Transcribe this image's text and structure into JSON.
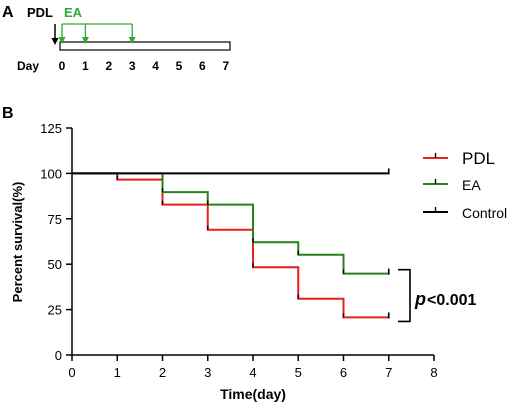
{
  "panel_a": {
    "letter": "A",
    "pdl_label": "PDL",
    "ea_label": "EA",
    "day_label": "Day",
    "days": [
      "0",
      "1",
      "2",
      "3",
      "4",
      "5",
      "6",
      "7"
    ],
    "pdl_day": 0,
    "ea_days": [
      0,
      1,
      3
    ],
    "colors": {
      "pdl": "#000000",
      "ea": "#2eaa3a"
    }
  },
  "panel_b": {
    "letter": "B",
    "p_value_italic": "p",
    "p_value_rest": "<0.001"
  },
  "chart_data": {
    "type": "line",
    "step": true,
    "ylabel": "Percent survival(%)",
    "xlabel": "Time(day)",
    "xlim": [
      0,
      8
    ],
    "ylim": [
      0,
      125
    ],
    "xticks": [
      "0",
      "1",
      "2",
      "3",
      "4",
      "5",
      "6",
      "7",
      "8"
    ],
    "yticks": [
      "0",
      "25",
      "50",
      "75",
      "100",
      "125"
    ],
    "grid": false,
    "legend_position": "top-right",
    "series": [
      {
        "name": "PDL",
        "color": "#e8201c",
        "points": [
          [
            0,
            100
          ],
          [
            1,
            96.6
          ],
          [
            2,
            82.8
          ],
          [
            3,
            69
          ],
          [
            4,
            48.3
          ],
          [
            5,
            31
          ],
          [
            6,
            20.7
          ],
          [
            7,
            20.7
          ]
        ],
        "censor": [
          [
            7,
            20.7
          ]
        ]
      },
      {
        "name": "EA",
        "color": "#2a7f1f",
        "points": [
          [
            0,
            100
          ],
          [
            2,
            89.7
          ],
          [
            3,
            82.8
          ],
          [
            4,
            62.1
          ],
          [
            5,
            55.2
          ],
          [
            6,
            44.8
          ],
          [
            7,
            44.8
          ]
        ],
        "censor": [
          [
            7,
            44.8
          ]
        ]
      },
      {
        "name": "Control",
        "color": "#000000",
        "points": [
          [
            0,
            100
          ],
          [
            7,
            100
          ]
        ],
        "censor": [
          [
            7,
            100
          ]
        ]
      }
    ]
  }
}
